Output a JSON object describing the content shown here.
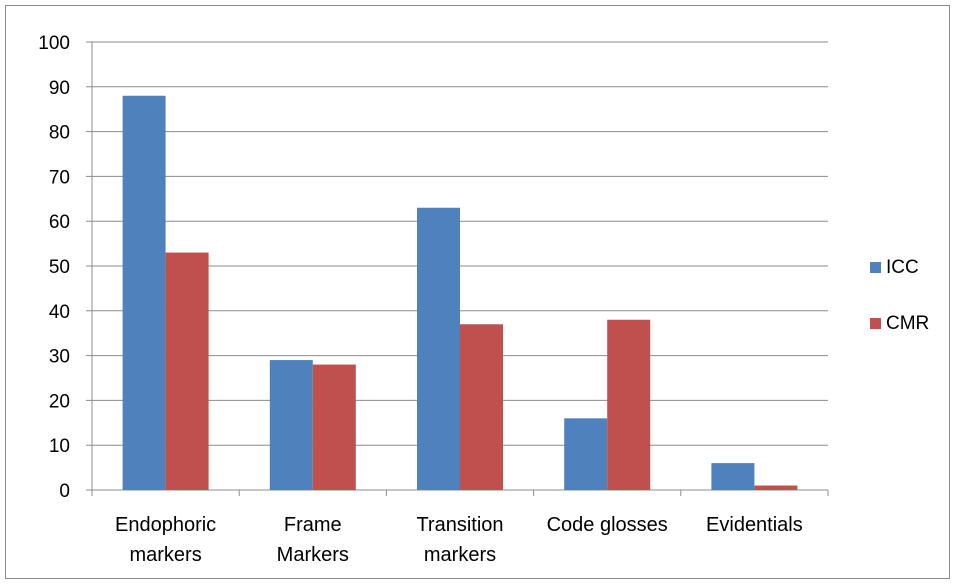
{
  "chart_data": {
    "type": "bar",
    "categories": [
      [
        "Endophoric",
        "markers"
      ],
      [
        "Frame",
        "Markers"
      ],
      [
        "Transition",
        "markers"
      ],
      [
        "Code glosses"
      ],
      [
        "Evidentials"
      ]
    ],
    "series": [
      {
        "name": "ICC",
        "color": "#4f81bd",
        "values": [
          88,
          29,
          63,
          16,
          6
        ]
      },
      {
        "name": "CMR",
        "color": "#c0504d",
        "values": [
          53,
          28,
          37,
          38,
          1
        ]
      }
    ],
    "ylim": [
      0,
      100
    ],
    "yticks": [
      0,
      10,
      20,
      30,
      40,
      50,
      60,
      70,
      80,
      90,
      100
    ],
    "grid": true,
    "legend_position": "right",
    "title": "",
    "xlabel": "",
    "ylabel": ""
  }
}
